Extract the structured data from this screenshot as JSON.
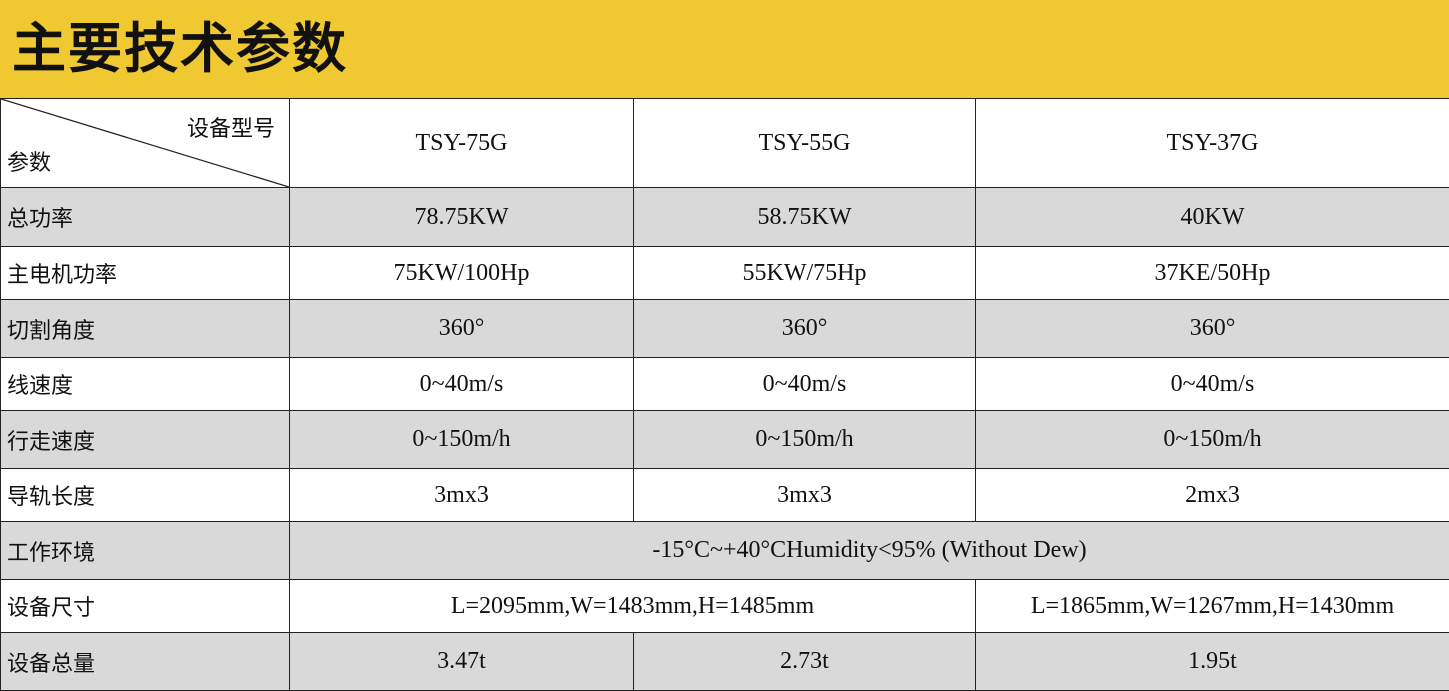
{
  "title": "主要技术参数",
  "colors": {
    "banner": "#F0C832",
    "shaded_row": "#D9D9D9"
  },
  "corner": {
    "top_right": "设备型号",
    "bottom_left": "参数"
  },
  "models": [
    "TSY-75G",
    "TSY-55G",
    "TSY-37G"
  ],
  "rows": [
    {
      "label": "总功率",
      "values": [
        "78.75KW",
        "58.75KW",
        "40KW"
      ]
    },
    {
      "label": "主电机功率",
      "values": [
        "75KW/100Hp",
        "55KW/75Hp",
        "37KE/50Hp"
      ]
    },
    {
      "label": "切割角度",
      "values": [
        "360°",
        "360°",
        "360°"
      ]
    },
    {
      "label": "线速度",
      "values": [
        "0~40m/s",
        "0~40m/s",
        "0~40m/s"
      ]
    },
    {
      "label": "行走速度",
      "values": [
        "0~150m/h",
        "0~150m/h",
        "0~150m/h"
      ]
    },
    {
      "label": "导轨长度",
      "values": [
        "3mx3",
        "3mx3",
        "2mx3"
      ]
    },
    {
      "label": "工作环境",
      "values": [
        "-15°C~+40°CHumidity<95% (Without Dew)"
      ]
    },
    {
      "label": "设备尺寸",
      "values": [
        "L=2095mm,W=1483mm,H=1485mm",
        "L=1865mm,W=1267mm,H=1430mm"
      ]
    },
    {
      "label": "设备总量",
      "values": [
        "3.47t",
        "2.73t",
        "1.95t"
      ]
    }
  ]
}
